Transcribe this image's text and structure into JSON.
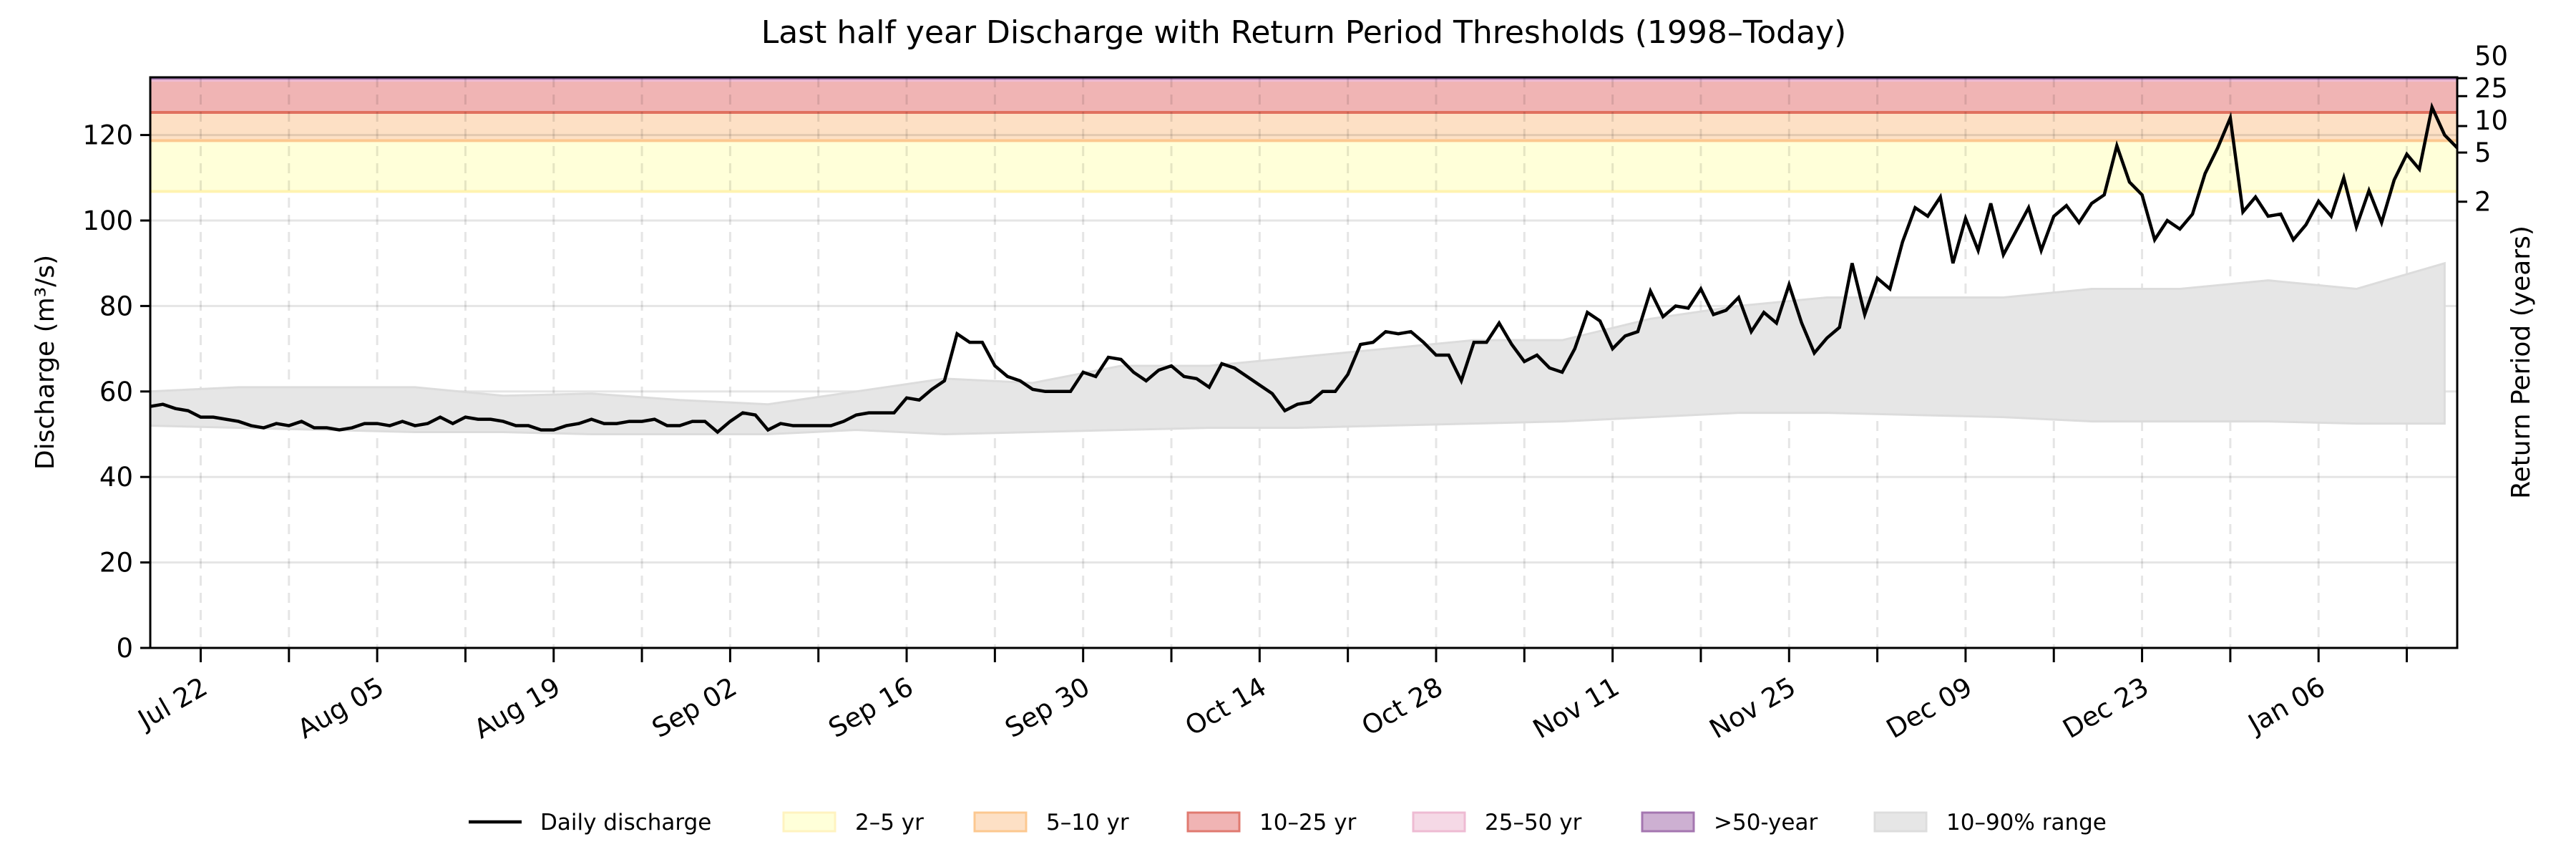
{
  "chart_data": {
    "type": "line",
    "title": "Last half year Discharge with Return Period Thresholds (1998–Today)",
    "ylabel": "Discharge (m³/s)",
    "ylabel_right": "Return Period (years)",
    "ylim": [
      0,
      133.5
    ],
    "yticks": [
      0,
      20,
      40,
      60,
      80,
      100,
      120
    ],
    "xlim": [
      "Jul 18",
      "Jan 17"
    ],
    "xtick_labels": [
      "Jul 22",
      "Aug 05",
      "Aug 19",
      "Sep 02",
      "Sep 16",
      "Sep 30",
      "Oct 14",
      "Oct 28",
      "Nov 11",
      "Nov 25",
      "Dec 09",
      "Dec 23",
      "Jan 06"
    ],
    "x_minor_ticks": [
      "Jul 22",
      "Jul 29",
      "Aug 05",
      "Aug 12",
      "Aug 19",
      "Aug 26",
      "Sep 02",
      "Sep 09",
      "Sep 16",
      "Sep 23",
      "Sep 30",
      "Oct 07",
      "Oct 14",
      "Oct 21",
      "Oct 28",
      "Nov 04",
      "Nov 11",
      "Nov 18",
      "Nov 25",
      "Dec 02",
      "Dec 09",
      "Dec 16",
      "Dec 23",
      "Dec 30",
      "Jan 06",
      "Jan 13"
    ],
    "grid": true,
    "right_axis_ticks": [
      {
        "label": "2",
        "discharge": 104.4
      },
      {
        "label": "5",
        "discharge": 115.9
      },
      {
        "label": "10",
        "discharge": 122.1
      },
      {
        "label": "25",
        "discharge": 129.1
      },
      {
        "label": "50",
        "discharge": 133.3
      }
    ],
    "thresholds": [
      {
        "name": "2–5 yr",
        "from": 106.8,
        "to": 118.7,
        "color": "#ffffd9",
        "edge": "#fff3b0"
      },
      {
        "name": "5–10 yr",
        "from": 118.7,
        "to": 125.3,
        "color": "#fde0c5",
        "edge": "#fcc890"
      },
      {
        "name": "10–25 yr",
        "from": 125.3,
        "to": 132.8,
        "color": "#f0b4b4",
        "edge": "#e07060"
      },
      {
        "name": "25–50 yr",
        "from": 132.8,
        "to": 133.3,
        "color": "#f5d9e6",
        "edge": "#eebbd3"
      },
      {
        "name": ">50-year",
        "from": 133.3,
        "to": 133.5,
        "color": "#cdb0d2",
        "edge": "#a476b0"
      }
    ],
    "range_band": {
      "name": "10–90% range",
      "color": "#e6e6e6",
      "dates": [
        "Jul 18",
        "Jul 25",
        "Aug 01",
        "Aug 08",
        "Aug 15",
        "Aug 22",
        "Aug 29",
        "Sep 05",
        "Sep 12",
        "Sep 19",
        "Sep 26",
        "Oct 03",
        "Oct 10",
        "Oct 17",
        "Oct 24",
        "Oct 31",
        "Nov 07",
        "Nov 14",
        "Nov 21",
        "Nov 28",
        "Dec 05",
        "Dec 12",
        "Dec 19",
        "Dec 26",
        "Jan 02",
        "Jan 09",
        "Jan 16"
      ],
      "p10": [
        52,
        51.5,
        51,
        50.5,
        50.5,
        50,
        50,
        50,
        51,
        50,
        50.5,
        51,
        51.5,
        51.5,
        52,
        52.5,
        53,
        54,
        55,
        55,
        54.5,
        54,
        53,
        53,
        53,
        52.5,
        52.5
      ],
      "p90": [
        60,
        61,
        61,
        61,
        59,
        59.5,
        58,
        57,
        60,
        63,
        62,
        66,
        66,
        68,
        70,
        72,
        72,
        77,
        80,
        82,
        82,
        82,
        84,
        84,
        86,
        84,
        90
      ]
    },
    "series": [
      {
        "name": "Daily discharge",
        "color": "#000000",
        "start": "Jul 18",
        "values": [
          56.5,
          57,
          56,
          55.5,
          54,
          54,
          53.5,
          53,
          52,
          51.5,
          52.5,
          52,
          53,
          51.5,
          51.5,
          51,
          51.5,
          52.5,
          52.5,
          52,
          53,
          52,
          52.5,
          54,
          52.5,
          54,
          53.5,
          53.5,
          53,
          52,
          52,
          51,
          51,
          52,
          52.5,
          53.5,
          52.5,
          52.5,
          53,
          53,
          53.5,
          52,
          52,
          53,
          53,
          50.5,
          53,
          55,
          54.5,
          51,
          52.5,
          52,
          52,
          52,
          52,
          53,
          54.5,
          55,
          55,
          55,
          58.5,
          58,
          60.5,
          62.5,
          73.5,
          71.5,
          71.5,
          66,
          63.5,
          62.5,
          60.5,
          60,
          60,
          60,
          64.5,
          63.5,
          68,
          67.5,
          64.5,
          62.5,
          65,
          66,
          63.5,
          63,
          61,
          66.5,
          65.5,
          63.5,
          61.5,
          59.5,
          55.5,
          57,
          57.5,
          60,
          60,
          64,
          71,
          71.5,
          74,
          73.5,
          74,
          71.5,
          68.5,
          68.5,
          62.5,
          71.5,
          71.5,
          76,
          71,
          67,
          68.5,
          65.5,
          64.5,
          70,
          78.5,
          76.5,
          70,
          73,
          74,
          83.5,
          77.5,
          80,
          79.5,
          84,
          78,
          79,
          82,
          74,
          78.5,
          76,
          85,
          76,
          69,
          72.5,
          75,
          90,
          78,
          86.5,
          84,
          95,
          103,
          101,
          105.5,
          90,
          100.5,
          93,
          104,
          92,
          97.5,
          103,
          93,
          101,
          103.5,
          99.5,
          104,
          106,
          117.5,
          109,
          106,
          95.5,
          100,
          98,
          101.5,
          111,
          117,
          124,
          102,
          105.5,
          101,
          101.5,
          95.5,
          99,
          104.5,
          101,
          110,
          98.5,
          107,
          99.5,
          109.5,
          115.5,
          112,
          126.5,
          120,
          117
        ]
      }
    ],
    "legend": {
      "placement": "bottom",
      "items": [
        {
          "label": "Daily discharge",
          "kind": "line",
          "color": "#000000"
        },
        {
          "label": "2–5 yr",
          "kind": "patch",
          "color": "#ffffd9",
          "edge": "#fff3c0"
        },
        {
          "label": "5–10 yr",
          "kind": "patch",
          "color": "#fde0c5",
          "edge": "#fcc890"
        },
        {
          "label": "10–25 yr",
          "kind": "patch",
          "color": "#f0b4b4",
          "edge": "#e07a70"
        },
        {
          "label": "25–50 yr",
          "kind": "patch",
          "color": "#f5d9e6",
          "edge": "#eebbd3"
        },
        {
          "label": ">50-year",
          "kind": "patch",
          "color": "#cdb0d2",
          "edge": "#a476b0"
        },
        {
          "label": "10–90% range",
          "kind": "patch",
          "color": "#e6e6e6",
          "edge": "#dddddd"
        }
      ]
    }
  }
}
